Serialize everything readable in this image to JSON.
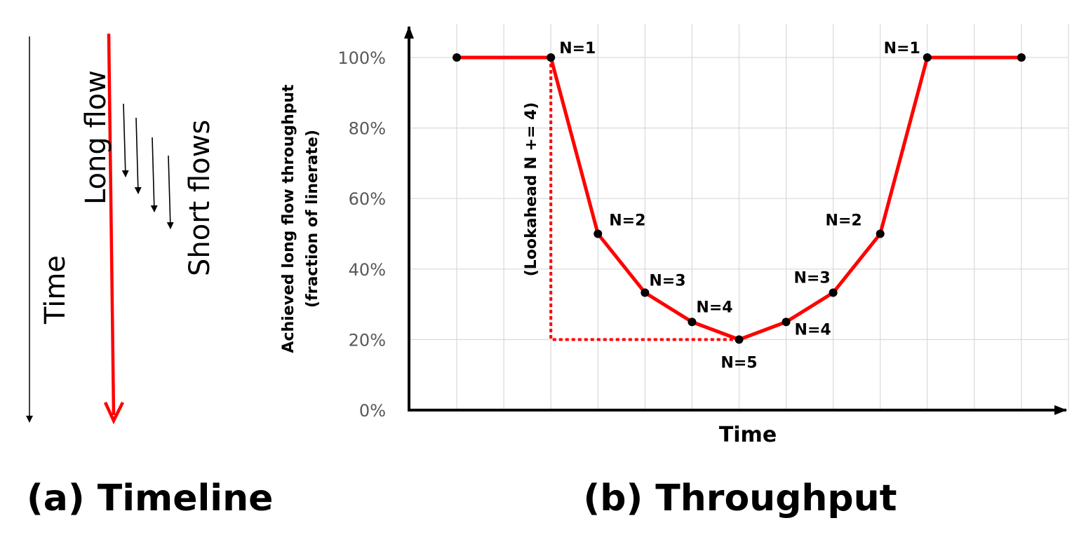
{
  "timeline": {
    "time_label": "Time",
    "long_flow_label": "Long flow",
    "short_flows_label": "Short flows",
    "caption": "(a) Timeline",
    "long_flow_color": "#ff0000",
    "arrow_color": "#000000"
  },
  "throughput": {
    "caption": "(b) Throughput",
    "annotation": "(Lookahead N += 4)"
  },
  "chart_data": {
    "type": "line",
    "title": "",
    "xlabel": "Time",
    "ylabel": "Achieved long flow throughput",
    "ylabel2": "(fraction of linerate)",
    "y_ticks": [
      "0%",
      "20%",
      "40%",
      "60%",
      "80%",
      "100%"
    ],
    "ylim": [
      0,
      100
    ],
    "xlim": [
      0,
      14
    ],
    "grid": true,
    "series_color": "#ff0000",
    "x": [
      1,
      3,
      4,
      5,
      6,
      7,
      8,
      9,
      10,
      11,
      13
    ],
    "y": [
      100,
      100,
      50,
      33.3,
      25,
      20,
      25,
      33.3,
      50,
      100,
      100
    ],
    "point_labels": [
      "",
      "N=1",
      "N=2",
      "N=3",
      "N=4",
      "N=5",
      "N=4",
      "N=3",
      "N=2",
      "N=1",
      ""
    ]
  }
}
